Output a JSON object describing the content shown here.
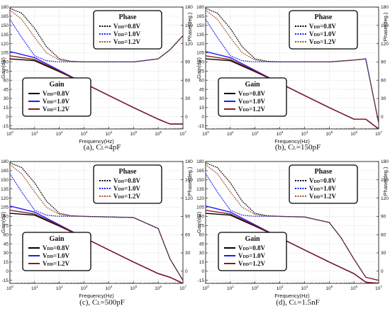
{
  "chart_data": [
    {
      "type": "line",
      "caption": "(a), C",
      "caption_sub": "L",
      "caption_tail": "=4pF",
      "xscale": "log",
      "xlim": [
        1,
        10000000
      ],
      "xlabel": "Frequency(Hz)",
      "ylabel": "Gain(dB)",
      "ylim": [
        -20,
        180
      ],
      "yticks": [
        -15,
        0,
        15,
        30,
        45,
        60,
        75,
        90,
        105,
        120,
        135,
        150,
        165,
        180
      ],
      "y2label": "Phase(deg.)",
      "y2lim": [
        -20,
        180
      ],
      "y2ticks": [
        0,
        30,
        60,
        90,
        120,
        150,
        180
      ],
      "gain_series": [
        {
          "legend": "0.8V",
          "color": "#000000",
          "x": [
            1,
            10,
            100,
            1000,
            10000,
            100000,
            1000000,
            3000000,
            10000000
          ],
          "y": [
            95,
            92,
            74,
            55,
            35,
            15,
            -4,
            -12,
            -12
          ]
        },
        {
          "legend": "1.0V",
          "color": "#1a1aff",
          "x": [
            1,
            10,
            100,
            1000,
            10000,
            100000,
            1000000,
            3000000,
            10000000
          ],
          "y": [
            107,
            97,
            76,
            55,
            35,
            15,
            -4,
            -12,
            -12
          ]
        },
        {
          "legend": "1.2V",
          "color": "#8b1a1a",
          "x": [
            1,
            10,
            100,
            1000,
            10000,
            100000,
            1000000,
            3000000,
            10000000
          ],
          "y": [
            100,
            94,
            75,
            55,
            35,
            15,
            -4,
            -12,
            -12
          ]
        }
      ],
      "phase_series": [
        {
          "legend": "0.8V",
          "color": "#000000",
          "x": [
            1,
            3,
            10,
            30,
            100,
            300,
            1000,
            100000,
            1000000,
            3000000,
            10000000
          ],
          "y": [
            178,
            170,
            145,
            115,
            95,
            91,
            90,
            90,
            95,
            110,
            133
          ]
        },
        {
          "legend": "1.0V",
          "color": "#1a1aff",
          "x": [
            1,
            3,
            10,
            30,
            100,
            300,
            1000,
            100000,
            1000000,
            3000000,
            10000000
          ],
          "y": [
            160,
            130,
            100,
            92,
            90,
            90,
            90,
            90,
            95,
            110,
            133
          ]
        },
        {
          "legend": "1.2V",
          "color": "#a0522d",
          "x": [
            1,
            3,
            10,
            30,
            100,
            300,
            1000,
            100000,
            1000000,
            3000000,
            10000000
          ],
          "y": [
            175,
            160,
            130,
            105,
            93,
            90,
            90,
            90,
            95,
            110,
            133
          ]
        }
      ],
      "legend_gain_title": "Gain",
      "legend_phase_title": "Phase"
    },
    {
      "type": "line",
      "caption": "(b), C",
      "caption_sub": "L",
      "caption_tail": "=150pF",
      "xscale": "log",
      "xlim": [
        1,
        10000000
      ],
      "xlabel": "Frequency(Hz)",
      "ylabel": "Gain(dB)",
      "ylim": [
        -20,
        180
      ],
      "yticks": [
        -15,
        0,
        15,
        30,
        45,
        60,
        75,
        90,
        105,
        120,
        135,
        150,
        165,
        180
      ],
      "y2label": "Phase(deg.)",
      "y2lim": [
        -20,
        180
      ],
      "y2ticks": [
        0,
        30,
        60,
        90,
        120,
        150,
        180
      ],
      "gain_series": [
        {
          "legend": "0.8V",
          "color": "#000000",
          "x": [
            1,
            10,
            100,
            1000,
            10000,
            100000,
            1000000,
            3000000,
            10000000
          ],
          "y": [
            95,
            92,
            74,
            55,
            35,
            15,
            -4,
            -4,
            -20
          ]
        },
        {
          "legend": "1.0V",
          "color": "#1a1aff",
          "x": [
            1,
            10,
            100,
            1000,
            10000,
            100000,
            1000000,
            3000000,
            10000000
          ],
          "y": [
            107,
            97,
            76,
            55,
            35,
            15,
            -4,
            -4,
            -20
          ]
        },
        {
          "legend": "1.2V",
          "color": "#8b1a1a",
          "x": [
            1,
            10,
            100,
            1000,
            10000,
            100000,
            1000000,
            3000000,
            10000000
          ],
          "y": [
            100,
            94,
            75,
            55,
            35,
            15,
            -4,
            -4,
            -20
          ]
        }
      ],
      "phase_series": [
        {
          "legend": "0.8V",
          "color": "#000000",
          "x": [
            1,
            3,
            10,
            30,
            100,
            300,
            1000,
            100000,
            1000000,
            3000000,
            10000000
          ],
          "y": [
            178,
            170,
            145,
            115,
            95,
            91,
            90,
            90,
            93,
            95,
            -10
          ]
        },
        {
          "legend": "1.0V",
          "color": "#1a1aff",
          "x": [
            1,
            3,
            10,
            30,
            100,
            300,
            1000,
            100000,
            1000000,
            3000000,
            10000000
          ],
          "y": [
            160,
            130,
            100,
            92,
            90,
            90,
            90,
            90,
            93,
            95,
            -10
          ]
        },
        {
          "legend": "1.2V",
          "color": "#a0522d",
          "x": [
            1,
            3,
            10,
            30,
            100,
            300,
            1000,
            100000,
            1000000,
            3000000,
            10000000
          ],
          "y": [
            175,
            160,
            130,
            105,
            93,
            90,
            90,
            90,
            93,
            95,
            -10
          ]
        }
      ],
      "legend_gain_title": "Gain",
      "legend_phase_title": "Phase"
    },
    {
      "type": "line",
      "caption": "(c), C",
      "caption_sub": "L",
      "caption_tail": "=500pF",
      "xscale": "log",
      "xlim": [
        1,
        10000000
      ],
      "xlabel": "Frequency(Hz)",
      "ylabel": "Gain(dB)",
      "ylim": [
        -20,
        180
      ],
      "yticks": [
        -15,
        0,
        15,
        30,
        45,
        60,
        75,
        90,
        105,
        120,
        135,
        150,
        165,
        180
      ],
      "y2label": "Phase(deg.)",
      "y2lim": [
        -20,
        180
      ],
      "y2ticks": [
        0,
        30,
        60,
        90,
        120,
        150,
        180
      ],
      "gain_series": [
        {
          "legend": "0.8V",
          "color": "#000000",
          "x": [
            1,
            10,
            100,
            1000,
            10000,
            100000,
            1000000,
            3000000,
            10000000
          ],
          "y": [
            95,
            92,
            74,
            55,
            35,
            15,
            -4,
            -10,
            -20
          ]
        },
        {
          "legend": "1.0V",
          "color": "#1a1aff",
          "x": [
            1,
            10,
            100,
            1000,
            10000,
            100000,
            1000000,
            3000000,
            10000000
          ],
          "y": [
            107,
            97,
            76,
            55,
            35,
            15,
            -4,
            -10,
            -20
          ]
        },
        {
          "legend": "1.2V",
          "color": "#8b1a1a",
          "x": [
            1,
            10,
            100,
            1000,
            10000,
            100000,
            1000000,
            3000000,
            10000000
          ],
          "y": [
            100,
            94,
            75,
            55,
            35,
            15,
            -4,
            -10,
            -20
          ]
        }
      ],
      "phase_series": [
        {
          "legend": "0.8V",
          "color": "#000000",
          "x": [
            1,
            3,
            10,
            30,
            100,
            300,
            1000,
            100000,
            1000000,
            3000000,
            10000000
          ],
          "y": [
            178,
            170,
            145,
            115,
            95,
            91,
            90,
            88,
            70,
            20,
            -15
          ]
        },
        {
          "legend": "1.0V",
          "color": "#1a1aff",
          "x": [
            1,
            3,
            10,
            30,
            100,
            300,
            1000,
            100000,
            1000000,
            3000000,
            10000000
          ],
          "y": [
            160,
            130,
            100,
            92,
            90,
            90,
            90,
            88,
            70,
            20,
            -15
          ]
        },
        {
          "legend": "1.2V",
          "color": "#a0522d",
          "x": [
            1,
            3,
            10,
            30,
            100,
            300,
            1000,
            100000,
            1000000,
            3000000,
            10000000
          ],
          "y": [
            175,
            160,
            130,
            105,
            93,
            90,
            90,
            88,
            70,
            20,
            -15
          ]
        }
      ],
      "legend_gain_title": "Gain",
      "legend_phase_title": "Phase"
    },
    {
      "type": "line",
      "caption": "(d), C",
      "caption_sub": "L",
      "caption_tail": "=1.5nF",
      "xscale": "log",
      "xlim": [
        1,
        10000000
      ],
      "xlabel": "Frequency(Hz)",
      "ylabel": "Gain(dB)",
      "ylim": [
        -20,
        180
      ],
      "yticks": [
        -15,
        0,
        15,
        30,
        45,
        60,
        75,
        90,
        105,
        120,
        135,
        150,
        165,
        180
      ],
      "y2label": "Phase(deg.)",
      "y2lim": [
        -20,
        180
      ],
      "y2ticks": [
        0,
        30,
        60,
        90,
        120,
        150,
        180
      ],
      "gain_series": [
        {
          "legend": "0.8V",
          "color": "#000000",
          "x": [
            1,
            10,
            100,
            1000,
            10000,
            100000,
            1000000,
            3000000,
            10000000
          ],
          "y": [
            95,
            92,
            74,
            55,
            35,
            15,
            -4,
            -18,
            -20
          ]
        },
        {
          "legend": "1.0V",
          "color": "#1a1aff",
          "x": [
            1,
            10,
            100,
            1000,
            10000,
            100000,
            1000000,
            3000000,
            10000000
          ],
          "y": [
            107,
            97,
            76,
            55,
            35,
            15,
            -4,
            -18,
            -20
          ]
        },
        {
          "legend": "1.2V",
          "color": "#8b1a1a",
          "x": [
            1,
            10,
            100,
            1000,
            10000,
            100000,
            1000000,
            3000000,
            10000000
          ],
          "y": [
            100,
            94,
            75,
            55,
            35,
            15,
            -4,
            -18,
            -20
          ]
        }
      ],
      "phase_series": [
        {
          "legend": "0.8V",
          "color": "#000000",
          "x": [
            1,
            3,
            10,
            30,
            100,
            300,
            1000,
            10000,
            100000,
            300000,
            1000000,
            3000000,
            10000000
          ],
          "y": [
            178,
            170,
            145,
            115,
            95,
            91,
            90,
            89,
            80,
            55,
            20,
            -10,
            -15
          ]
        },
        {
          "legend": "1.0V",
          "color": "#1a1aff",
          "x": [
            1,
            3,
            10,
            30,
            100,
            300,
            1000,
            10000,
            100000,
            300000,
            1000000,
            3000000,
            10000000
          ],
          "y": [
            160,
            130,
            100,
            92,
            90,
            90,
            90,
            89,
            80,
            55,
            20,
            -10,
            -15
          ]
        },
        {
          "legend": "1.2V",
          "color": "#a0522d",
          "x": [
            1,
            3,
            10,
            30,
            100,
            300,
            1000,
            10000,
            100000,
            300000,
            1000000,
            3000000,
            10000000
          ],
          "y": [
            175,
            160,
            130,
            105,
            93,
            90,
            90,
            89,
            80,
            55,
            20,
            -10,
            -15
          ]
        }
      ],
      "legend_gain_title": "Gain",
      "legend_phase_title": "Phase"
    }
  ],
  "legend_prefix": "V",
  "legend_prefix_sub": "DD",
  "legend_eq": "="
}
